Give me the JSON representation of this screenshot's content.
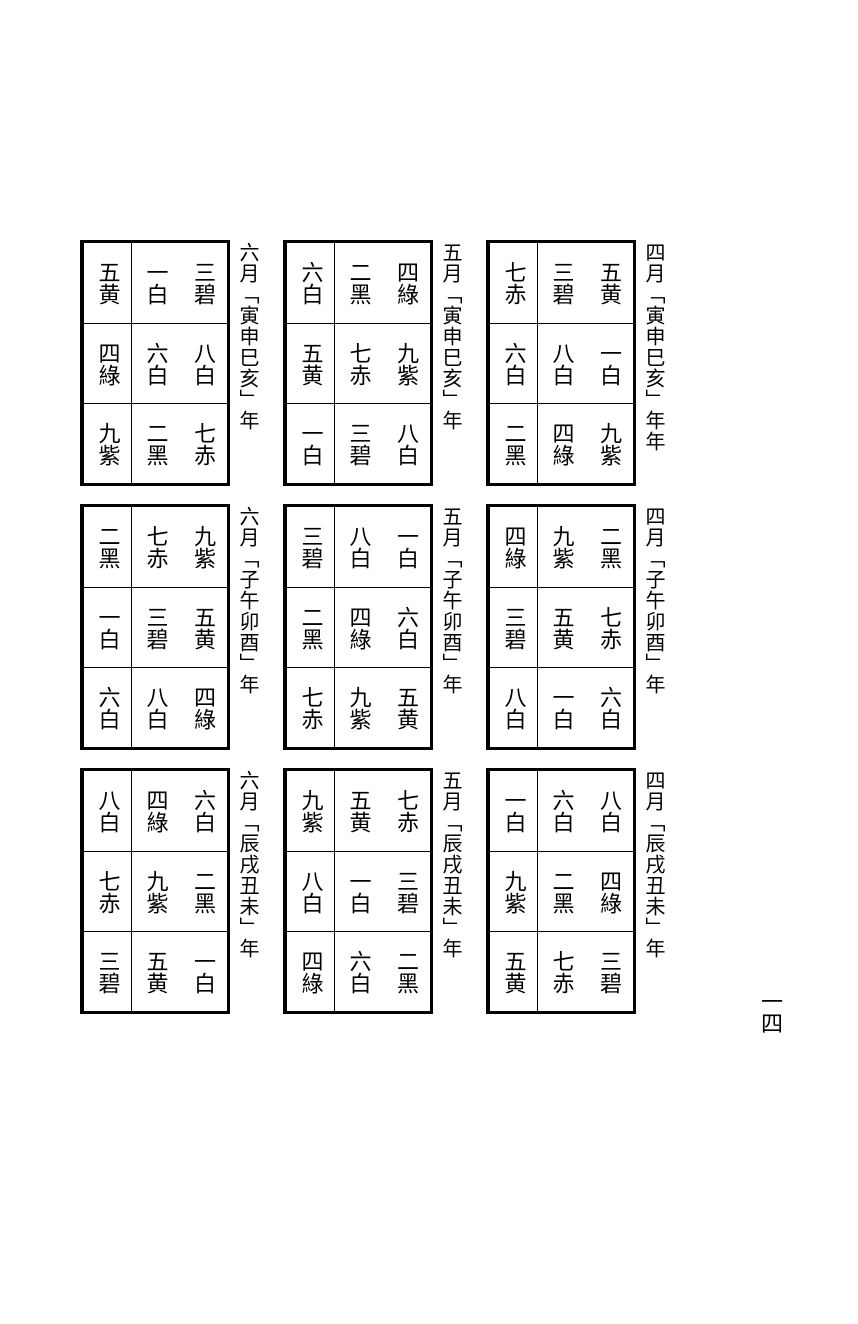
{
  "page_number": "一四",
  "columns": [
    {
      "sections": [
        {
          "label": "四月「寅申巳亥」年年",
          "cells": [
            "五黄",
            "三碧",
            "七赤",
            "一白",
            "八白",
            "六白",
            "九紫",
            "四綠",
            "二黑"
          ]
        },
        {
          "label": "四月「子午卯酉」年",
          "cells": [
            "二黑",
            "九紫",
            "四綠",
            "七赤",
            "五黄",
            "三碧",
            "六白",
            "一白",
            "八白"
          ]
        },
        {
          "label": "四月「辰戌丑未」年",
          "cells": [
            "八白",
            "六白",
            "一白",
            "四綠",
            "二黑",
            "九紫",
            "三碧",
            "七赤",
            "五黄"
          ]
        }
      ]
    },
    {
      "sections": [
        {
          "label": "五月「寅申巳亥」年",
          "cells": [
            "四綠",
            "二黑",
            "六白",
            "九紫",
            "七赤",
            "五黄",
            "八白",
            "三碧",
            "一白"
          ]
        },
        {
          "label": "五月「子午卯酉」年",
          "cells": [
            "一白",
            "八白",
            "三碧",
            "六白",
            "四綠",
            "二黑",
            "五黄",
            "九紫",
            "七赤"
          ]
        },
        {
          "label": "五月「辰戌丑未」年",
          "cells": [
            "七赤",
            "五黄",
            "九紫",
            "三碧",
            "一白",
            "八白",
            "二黑",
            "六白",
            "四綠"
          ]
        }
      ]
    },
    {
      "sections": [
        {
          "label": "六月「寅申巳亥」年",
          "cells": [
            "三碧",
            "一白",
            "五黄",
            "八白",
            "六白",
            "四綠",
            "七赤",
            "二黑",
            "九紫"
          ]
        },
        {
          "label": "六月「子午卯酉」年",
          "cells": [
            "九紫",
            "七赤",
            "二黑",
            "五黄",
            "三碧",
            "一白",
            "四綠",
            "八白",
            "六白"
          ]
        },
        {
          "label": "六月「辰戌丑未」年",
          "cells": [
            "六白",
            "四綠",
            "八白",
            "二黑",
            "九紫",
            "七赤",
            "一白",
            "五黄",
            "三碧"
          ]
        }
      ]
    }
  ]
}
